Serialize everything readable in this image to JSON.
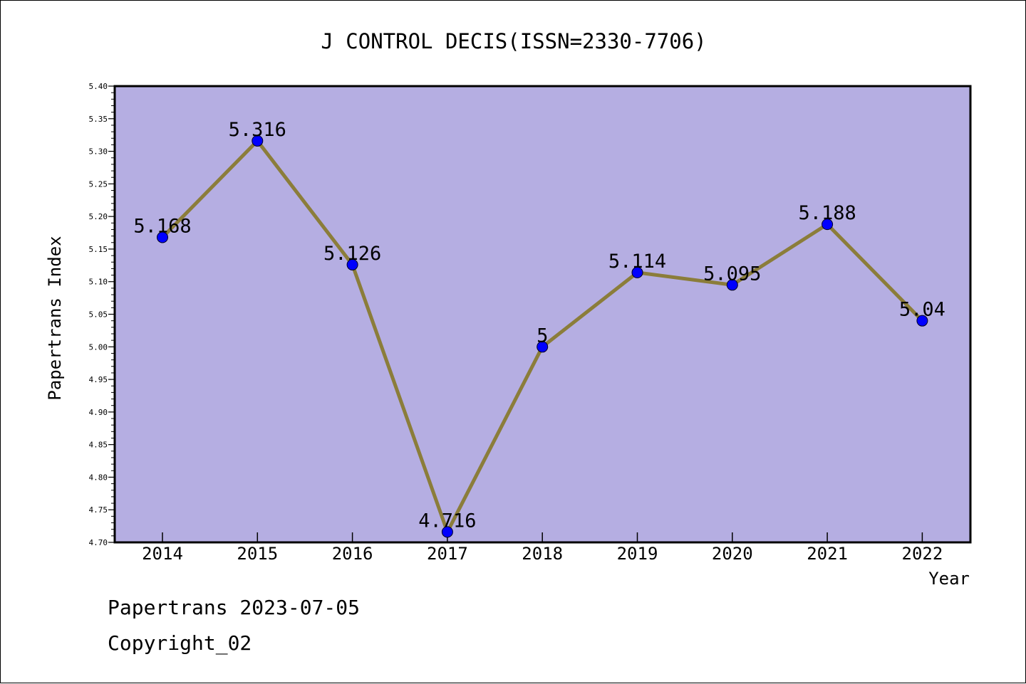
{
  "chart_data": {
    "type": "line",
    "title": "J CONTROL DECIS(ISSN=2330-7706)",
    "xlabel": "Year",
    "ylabel": "Papertrans Index",
    "categories": [
      "2014",
      "2015",
      "2016",
      "2017",
      "2018",
      "2019",
      "2020",
      "2021",
      "2022"
    ],
    "values": [
      5.168,
      5.316,
      5.126,
      4.716,
      5,
      5.114,
      5.095,
      5.188,
      5.04
    ],
    "point_labels": [
      "5.168",
      "5.316",
      "5.126",
      "4.716",
      "5",
      "5.114",
      "5.095",
      "5.188",
      "5.04"
    ],
    "ylim": [
      4.7,
      5.4
    ],
    "yticks": [
      "4.70",
      "4.75",
      "4.80",
      "4.85",
      "4.90",
      "4.95",
      "5.00",
      "5.05",
      "5.10",
      "5.15",
      "5.20",
      "5.25",
      "5.30",
      "5.35",
      "5.40"
    ],
    "grid": false,
    "colors": {
      "plot_background": "#b5aee2",
      "line": "#8b7d3a",
      "marker": "#0000ff"
    }
  },
  "footer": {
    "line1": "Papertrans 2023-07-05",
    "line2": "Copyright_02"
  }
}
